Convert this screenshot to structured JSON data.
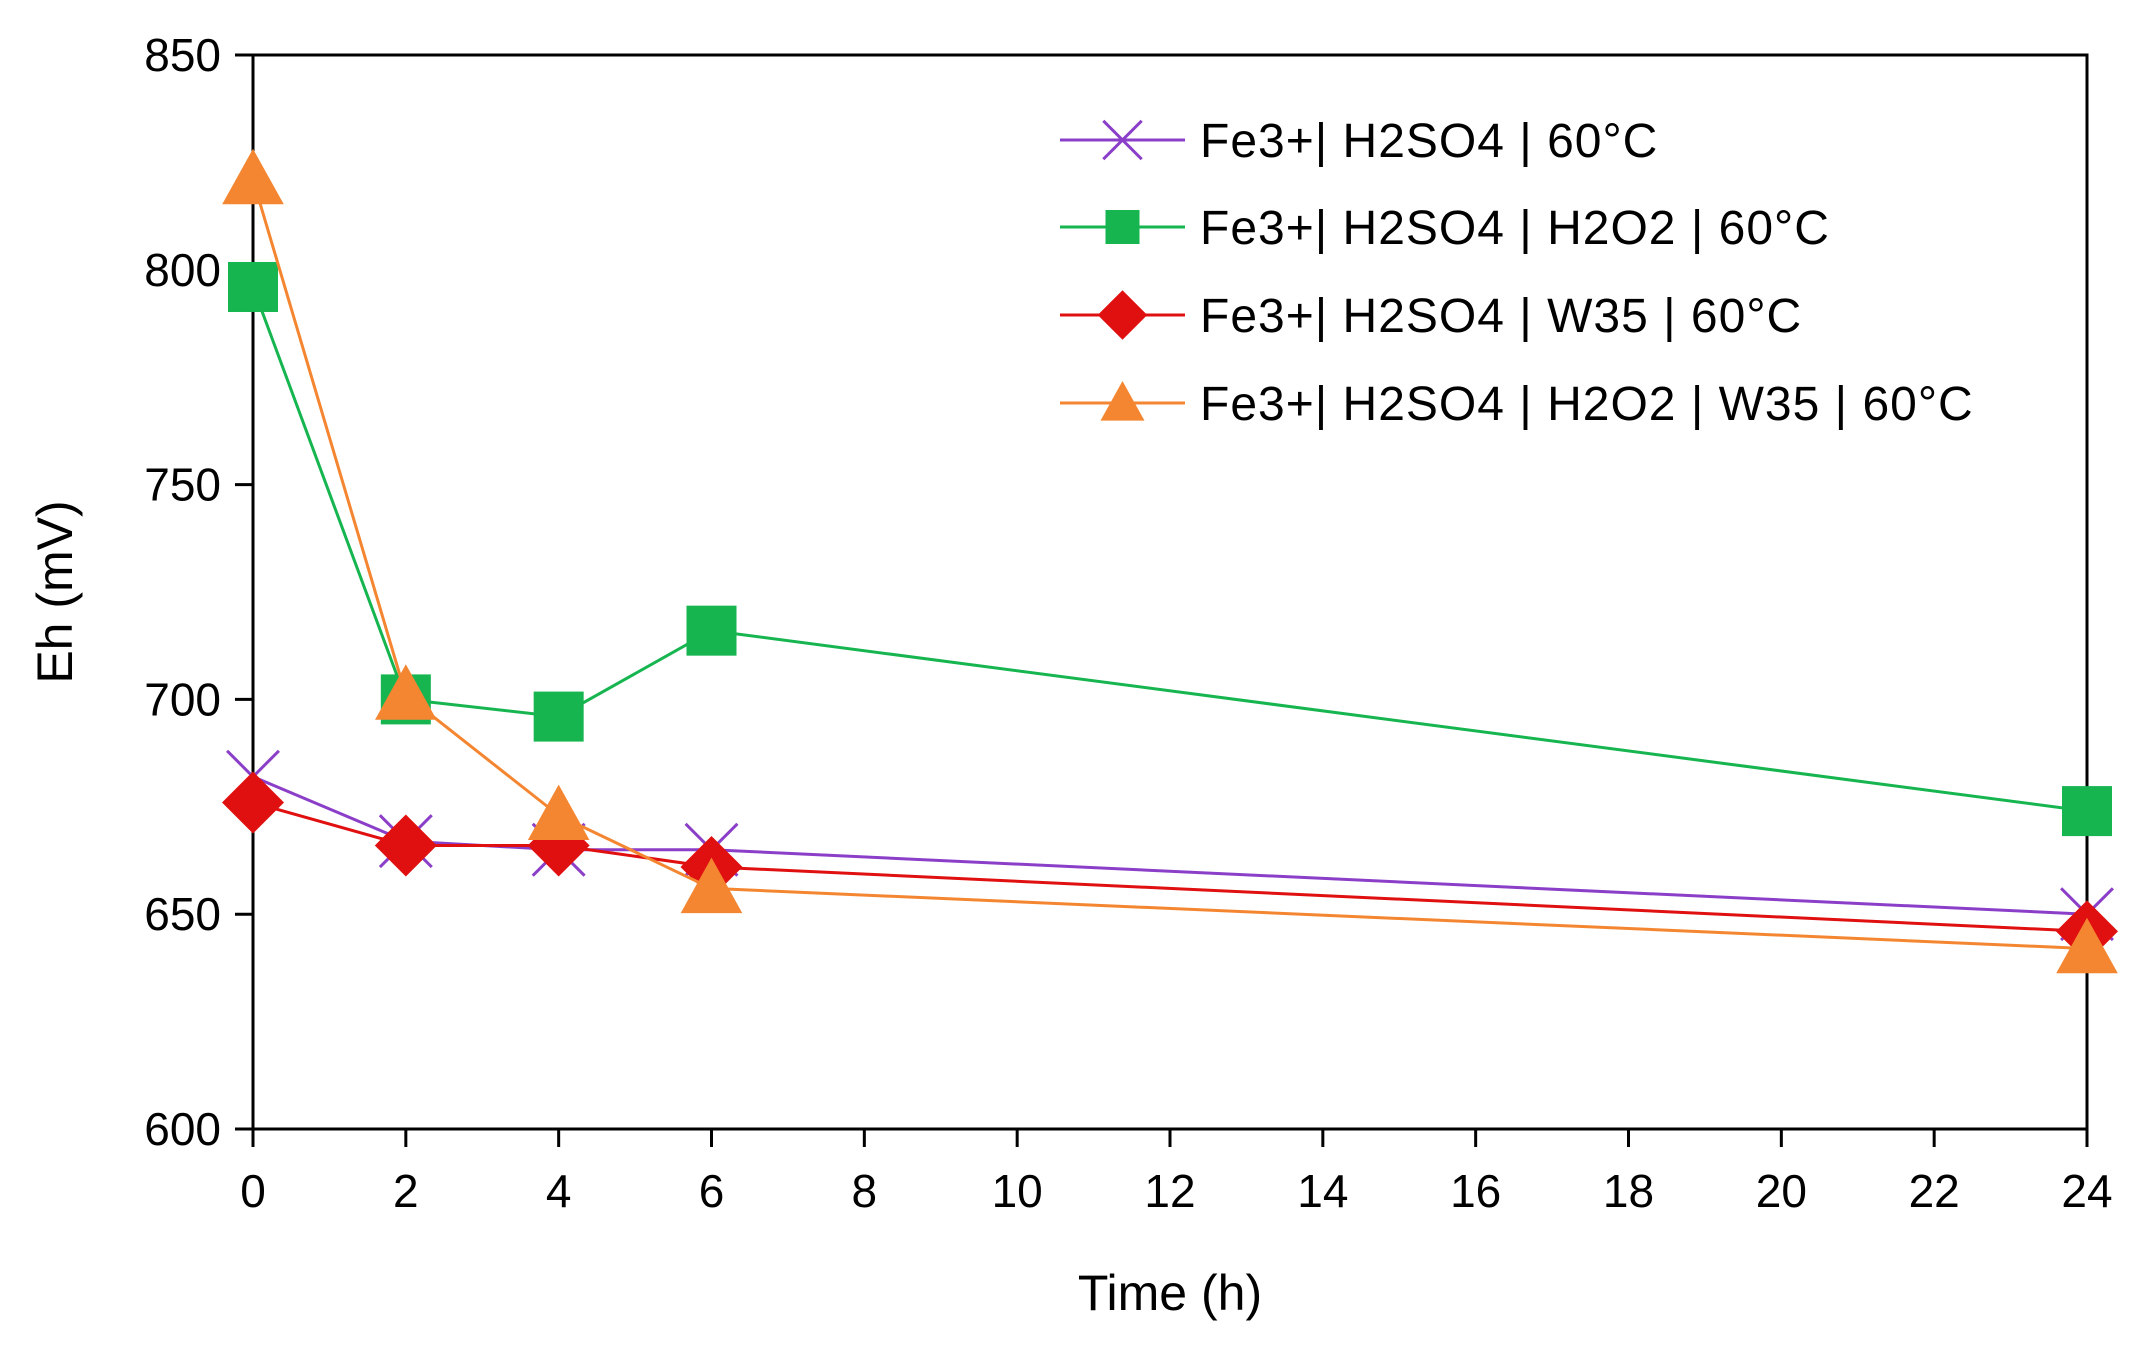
{
  "chart_data": {
    "type": "line",
    "title": "",
    "xlabel": "Time (h)",
    "ylabel": "Eh (mV)",
    "xlim": [
      0,
      24
    ],
    "ylim": [
      600,
      850
    ],
    "xticks": [
      0,
      2,
      4,
      6,
      8,
      10,
      12,
      14,
      16,
      18,
      20,
      22,
      24
    ],
    "yticks": [
      600,
      650,
      700,
      750,
      800,
      850
    ],
    "grid": false,
    "legend_position": "top-right",
    "series": [
      {
        "name": "Fe3+| H2SO4 | 60°C",
        "color": "#8B3FC8",
        "marker": "x",
        "x": [
          0,
          2,
          4,
          6,
          24
        ],
        "values": [
          682,
          667,
          665,
          665,
          650
        ]
      },
      {
        "name": "Fe3+| H2SO4 | H2O2 | 60°C",
        "color": "#16B550",
        "marker": "square",
        "x": [
          0,
          2,
          4,
          6,
          24
        ],
        "values": [
          796,
          700,
          696,
          716,
          674
        ]
      },
      {
        "name": "Fe3+| H2SO4 | W35 | 60°C",
        "color": "#E01010",
        "marker": "diamond",
        "x": [
          0,
          2,
          4,
          6,
          24
        ],
        "values": [
          676,
          666,
          666,
          661,
          646
        ]
      },
      {
        "name": "Fe3+| H2SO4 | H2O2 | W35 | 60°C",
        "color": "#F58631",
        "marker": "triangle",
        "x": [
          0,
          2,
          4,
          6,
          24
        ],
        "values": [
          821,
          701,
          673,
          656,
          642
        ]
      }
    ]
  }
}
